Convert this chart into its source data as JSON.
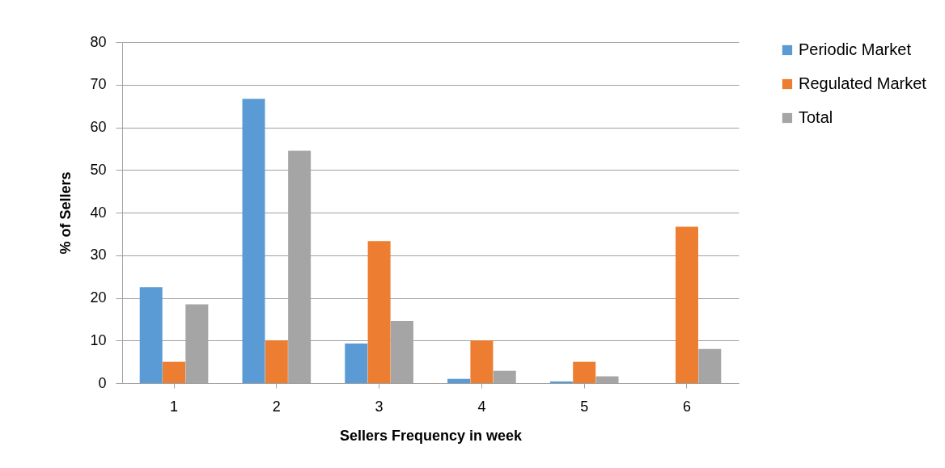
{
  "chart_data": {
    "type": "bar",
    "xlabel": "Sellers Frequency in week",
    "ylabel": "% of Sellers",
    "categories": [
      "1",
      "2",
      "3",
      "4",
      "5",
      "6"
    ],
    "series": [
      {
        "name": "Periodic Market",
        "color": "#5b9bd5",
        "values": [
          22.5,
          66.7,
          9.3,
          1.0,
          0.4,
          0
        ]
      },
      {
        "name": "Regulated Market",
        "color": "#ed7d31",
        "values": [
          5.0,
          10.0,
          33.3,
          10.0,
          5.0,
          36.7
        ]
      },
      {
        "name": "Total",
        "color": "#a5a5a5",
        "values": [
          18.5,
          54.5,
          14.6,
          2.9,
          1.6,
          8.0
        ]
      }
    ],
    "ylim": [
      0,
      80
    ],
    "yticks": [
      0,
      10,
      20,
      30,
      40,
      50,
      60,
      70,
      80
    ],
    "grid": "y",
    "legend": "right"
  }
}
